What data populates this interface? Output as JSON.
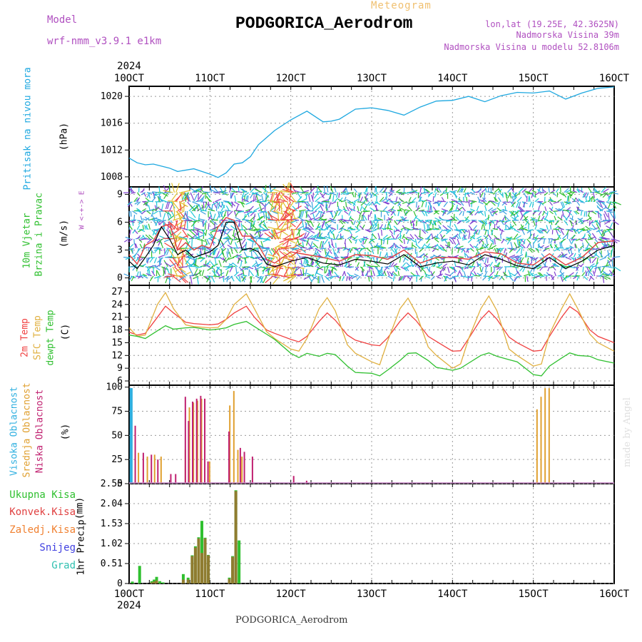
{
  "header": {
    "title": "PODGORICA_Aerodrom",
    "meteogram_label": "Meteogram",
    "model_label": "Model",
    "model_name": "wrf-nmm_v3.9.1 e1km",
    "lonlat": "lon,lat (19.25E, 42.3625N)",
    "elevation": "Nadmorska Visina 39m",
    "model_elevation": "Nadmorska Visina u modelu 52.8106m"
  },
  "footer": {
    "station": "PODGORICA_Aerodrom",
    "credit": "made by Angel"
  },
  "colors": {
    "pressure": "#1ea8e0",
    "temp2m": "#f04040",
    "sfc": "#e0b040",
    "dewpt": "#30c030",
    "high_cloud": "#30b0e0",
    "mid_cloud": "#e0a030",
    "low_cloud": "#c02070",
    "total_precip": "#30c030",
    "conv_precip": "#e04040",
    "frozen": "#f08030",
    "snow": "#4040e0",
    "hail": "#30c0b0"
  },
  "chart_data": [
    {
      "type": "line",
      "name": "pressure",
      "ylabel": "Pritisak na nivou mora",
      "yunit": "(hPa)",
      "yticks": [
        1008,
        1012,
        1016,
        1020
      ],
      "ylim": [
        1006.5,
        1021.5
      ],
      "x_day_ticks": [
        "10OCT",
        "11OCT",
        "12OCT",
        "13OCT",
        "14OCT",
        "15OCT",
        "16OCT"
      ],
      "year_label": "2024",
      "x_days": [
        0,
        0.1,
        0.2,
        0.3,
        0.4,
        0.5,
        0.6,
        0.8,
        1.0,
        1.1,
        1.2,
        1.3,
        1.4,
        1.5,
        1.6,
        1.8,
        2.0,
        2.2,
        2.4,
        2.5,
        2.6,
        2.8,
        3.0,
        3.2,
        3.4,
        3.6,
        3.8,
        4.0,
        4.2,
        4.4,
        4.6,
        4.8,
        5.0,
        5.2,
        5.4,
        5.6,
        5.8,
        6.0
      ],
      "values": [
        1010.8,
        1010.1,
        1009.8,
        1009.9,
        1009.6,
        1009.3,
        1008.8,
        1009.2,
        1008.4,
        1007.9,
        1008.6,
        1009.9,
        1010.1,
        1011.0,
        1012.8,
        1014.9,
        1016.5,
        1017.8,
        1016.2,
        1016.3,
        1016.6,
        1018.1,
        1018.3,
        1017.9,
        1017.2,
        1018.4,
        1019.3,
        1019.4,
        1020.0,
        1019.2,
        1020.1,
        1020.6,
        1020.5,
        1020.8,
        1019.6,
        1020.5,
        1021.2,
        1021.4
      ]
    },
    {
      "type": "line",
      "name": "wind",
      "ylabel": "10m Vjetar",
      "ylabel2": "Brzina i Pravac",
      "yunit": "(m/s)",
      "compass": "W <-+-> E",
      "yticks": [
        0,
        3,
        6,
        9
      ],
      "ylim": [
        -0.8,
        9.8
      ],
      "x_days": [
        0,
        0.1,
        0.2,
        0.3,
        0.4,
        0.5,
        0.6,
        0.7,
        0.8,
        0.9,
        1.0,
        1.1,
        1.2,
        1.3,
        1.4,
        1.5,
        1.6,
        1.7,
        1.8,
        2.0,
        2.2,
        2.4,
        2.6,
        2.8,
        3.0,
        3.2,
        3.4,
        3.6,
        3.8,
        4.0,
        4.2,
        4.4,
        4.6,
        4.8,
        5.0,
        5.2,
        5.4,
        5.6,
        5.8,
        6.0
      ],
      "values": [
        1.8,
        1.0,
        2.2,
        3.5,
        5.5,
        4.2,
        2.5,
        3.0,
        2.2,
        2.5,
        2.8,
        3.5,
        6.0,
        6.0,
        3.0,
        3.2,
        2.8,
        1.5,
        1.2,
        1.8,
        2.2,
        1.6,
        1.4,
        2.0,
        1.8,
        1.5,
        2.5,
        1.2,
        1.6,
        1.8,
        1.4,
        2.5,
        2.0,
        1.3,
        1.0,
        2.2,
        1.0,
        1.8,
        3.0,
        3.5
      ],
      "gust_values": [
        2.5,
        1.5,
        3.5,
        4.0,
        5.5,
        5.8,
        3.0,
        3.8,
        3.0,
        3.5,
        3.2,
        5.5,
        6.5,
        6.2,
        4.5,
        4.5,
        3.5,
        2.0,
        1.6,
        2.8,
        2.5,
        2.2,
        1.8,
        2.5,
        2.4,
        2.0,
        3.0,
        1.6,
        2.2,
        2.2,
        2.0,
        2.8,
        2.6,
        1.6,
        1.4,
        2.6,
        1.4,
        2.2,
        3.8,
        4.0
      ]
    },
    {
      "type": "line",
      "name": "temperature",
      "ylabel": "2m Temp",
      "ylabel2": "SFC Temp",
      "ylabel3": "dewpt Temp",
      "yunit": "(C)",
      "yticks": [
        6,
        9,
        12,
        15,
        18,
        21,
        24,
        27
      ],
      "ylim": [
        5,
        28.5
      ],
      "x_days": [
        0,
        0.1,
        0.2,
        0.35,
        0.45,
        0.55,
        0.7,
        0.8,
        1.0,
        1.1,
        1.2,
        1.3,
        1.45,
        1.55,
        1.7,
        1.8,
        2.0,
        2.1,
        2.2,
        2.35,
        2.45,
        2.55,
        2.7,
        2.8,
        3.0,
        3.1,
        3.2,
        3.35,
        3.45,
        3.55,
        3.7,
        3.8,
        4.0,
        4.1,
        4.2,
        4.35,
        4.45,
        4.55,
        4.7,
        4.8,
        5.0,
        5.1,
        5.2,
        5.35,
        5.45,
        5.55,
        5.7,
        5.8,
        6.0
      ],
      "series": [
        {
          "name": "2m Temp",
          "values": [
            17.5,
            16.8,
            17.2,
            21.0,
            23.6,
            22.0,
            19.8,
            19.5,
            19.2,
            19.4,
            20.5,
            22.0,
            23.6,
            21.0,
            18.0,
            17.2,
            15.8,
            15.2,
            16.5,
            20.0,
            22.0,
            20.3,
            16.8,
            15.6,
            14.5,
            14.3,
            16.2,
            20.0,
            22.0,
            20.2,
            16.5,
            15.3,
            13.0,
            13.1,
            16.0,
            20.5,
            22.5,
            20.5,
            16.3,
            15.0,
            13.0,
            13.2,
            16.5,
            21.0,
            23.5,
            22.2,
            18.0,
            16.5,
            15.0
          ]
        },
        {
          "name": "SFC Temp",
          "values": [
            18.5,
            16.5,
            16.8,
            24.0,
            26.8,
            23.0,
            19.2,
            18.8,
            18.5,
            18.6,
            20.5,
            24.0,
            26.5,
            23.0,
            17.6,
            16.0,
            13.5,
            13.0,
            16.0,
            23.0,
            25.6,
            22.5,
            14.5,
            12.5,
            10.5,
            9.8,
            15.5,
            23.0,
            25.5,
            22.0,
            14.0,
            12.0,
            9.0,
            10.0,
            16.0,
            23.0,
            26.0,
            22.5,
            13.5,
            12.0,
            9.5,
            10.0,
            17.0,
            23.0,
            26.5,
            23.0,
            17.0,
            15.0,
            13.0
          ]
        },
        {
          "name": "dewpt Temp",
          "values": [
            16.8,
            16.5,
            16.0,
            17.8,
            19.0,
            18.2,
            18.5,
            18.6,
            18.0,
            18.2,
            18.5,
            19.3,
            20.0,
            18.8,
            17.0,
            15.8,
            12.5,
            11.5,
            12.5,
            11.8,
            12.5,
            12.2,
            9.5,
            8.0,
            7.8,
            7.2,
            8.6,
            10.8,
            12.5,
            12.6,
            10.8,
            9.2,
            8.5,
            9.0,
            10.2,
            12.0,
            12.6,
            11.8,
            11.0,
            10.5,
            7.5,
            7.2,
            9.5,
            11.4,
            12.6,
            12.0,
            11.8,
            11.0,
            10.2
          ]
        }
      ]
    },
    {
      "type": "bar",
      "name": "clouds",
      "ylabel": "Visoka Oblacnost",
      "ylabel2": "Srednja Oblacnost",
      "ylabel3": "Niska Oblacnost",
      "yunit": "(%)",
      "yticks": [
        0,
        25,
        50,
        75,
        100
      ],
      "ylim": [
        0,
        102
      ],
      "series": [
        {
          "name": "Visoka Oblacnost",
          "x_days": [
            0.02,
            0.03
          ],
          "values": [
            99,
            99
          ]
        },
        {
          "name": "Srednja Oblacnost",
          "x_days": [
            0.12,
            0.23,
            0.32,
            0.4,
            0.7,
            0.75,
            0.8,
            0.85,
            0.9,
            1.0,
            1.25,
            1.3,
            1.35,
            1.4,
            5.05,
            5.1,
            5.15,
            5.2
          ],
          "values": [
            32,
            28,
            30,
            28,
            35,
            79,
            84,
            86,
            88,
            23,
            81,
            96,
            35,
            28,
            77,
            90,
            99,
            99
          ]
        },
        {
          "name": "Niska Oblacnost",
          "x_days": [
            0.08,
            0.18,
            0.28,
            0.36,
            0.52,
            0.58,
            0.7,
            0.74,
            0.79,
            0.84,
            0.89,
            0.94,
            0.98,
            1.24,
            1.38,
            1.43,
            1.53,
            2.04,
            2.2
          ],
          "values": [
            60,
            32,
            30,
            25,
            10,
            10,
            90,
            65,
            85,
            88,
            91,
            88,
            23,
            54,
            37,
            33,
            28,
            8,
            3
          ]
        }
      ]
    },
    {
      "type": "bar",
      "name": "precipitation",
      "ylabel": "1hr Precip",
      "yunit": "(mm)",
      "yticks": [
        0,
        0.51,
        1.02,
        1.53,
        2.04,
        2.55
      ],
      "ylim": [
        0,
        2.55
      ],
      "legend": [
        "Ukupna Kisa",
        "Konvek.Kisa",
        "Zaledj.Kisa",
        "Snijeg",
        "Grad"
      ],
      "year_label": "2024",
      "x_days": [
        0.04,
        0.13,
        0.28,
        0.31,
        0.34,
        0.38,
        0.42,
        0.67,
        0.73,
        0.78,
        0.82,
        0.86,
        0.9,
        0.94,
        0.98,
        1.24,
        1.28,
        1.32,
        1.36
      ],
      "series": [
        {
          "name": "Ukupna Kisa",
          "values": [
            0.05,
            0.45,
            0.06,
            0.1,
            0.17,
            0.06,
            0.03,
            0.24,
            0.15,
            0.72,
            0.95,
            1.18,
            1.6,
            1.17,
            0.73,
            0.15,
            0.7,
            2.38,
            1.1
          ]
        },
        {
          "name": "Konvek.Kisa",
          "values": [
            0.0,
            0.0,
            0.03,
            0.05,
            0.08,
            0.0,
            0.0,
            0.1,
            0.1,
            0.7,
            0.92,
            1.15,
            0.78,
            1.15,
            0.72,
            0.12,
            0.68,
            2.36,
            0.0
          ]
        }
      ]
    }
  ]
}
